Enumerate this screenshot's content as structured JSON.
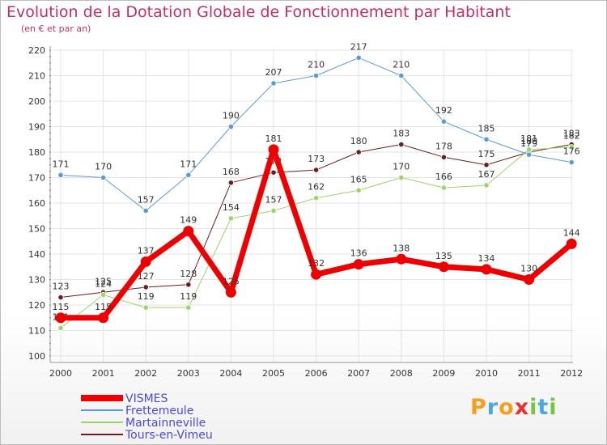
{
  "header": {
    "title": "Evolution de la Dotation Globale de Fonctionnement par Habitant",
    "subtitle": "(en € et par an)"
  },
  "logo": {
    "letters": [
      "P",
      "r",
      "o",
      "x",
      "i",
      "t",
      "i"
    ]
  },
  "chart_data": {
    "type": "line",
    "title": "Evolution de la Dotation Globale de Fonctionnement par Habitant",
    "ylabel": "(en € et par an)",
    "xlabel": "",
    "categories": [
      "2000",
      "2001",
      "2002",
      "2003",
      "2004",
      "2005",
      "2006",
      "2007",
      "2008",
      "2009",
      "2010",
      "2011",
      "2012"
    ],
    "ylim": [
      100,
      220
    ],
    "yticks": [
      100,
      110,
      120,
      130,
      140,
      150,
      160,
      170,
      180,
      190,
      200,
      210,
      220
    ],
    "grid": true,
    "legend_position": "bottom-left",
    "series": [
      {
        "name": "Tours-en-Vimeu",
        "color": "#6b1d1d",
        "width": 1,
        "values": [
          123,
          125,
          127,
          128,
          168,
          172,
          173,
          180,
          183,
          178,
          175,
          180,
          183
        ]
      },
      {
        "name": "Martainneville",
        "color": "#9ad56a",
        "width": 1,
        "values": [
          111,
          124,
          119,
          119,
          154,
          157,
          162,
          165,
          170,
          166,
          167,
          181,
          182
        ]
      },
      {
        "name": "Frettemeule",
        "color": "#5b9bd5",
        "width": 1,
        "values": [
          171,
          170,
          157,
          171,
          190,
          207,
          210,
          217,
          210,
          192,
          185,
          179,
          176
        ]
      },
      {
        "name": "VISMES",
        "color": "#ee0000",
        "width": 7,
        "values": [
          115,
          115,
          137,
          149,
          125,
          181,
          132,
          136,
          138,
          135,
          134,
          130,
          144
        ]
      }
    ],
    "legend_order": [
      "VISMES",
      "Frettemeule",
      "Martainneville",
      "Tours-en-Vimeu"
    ]
  }
}
